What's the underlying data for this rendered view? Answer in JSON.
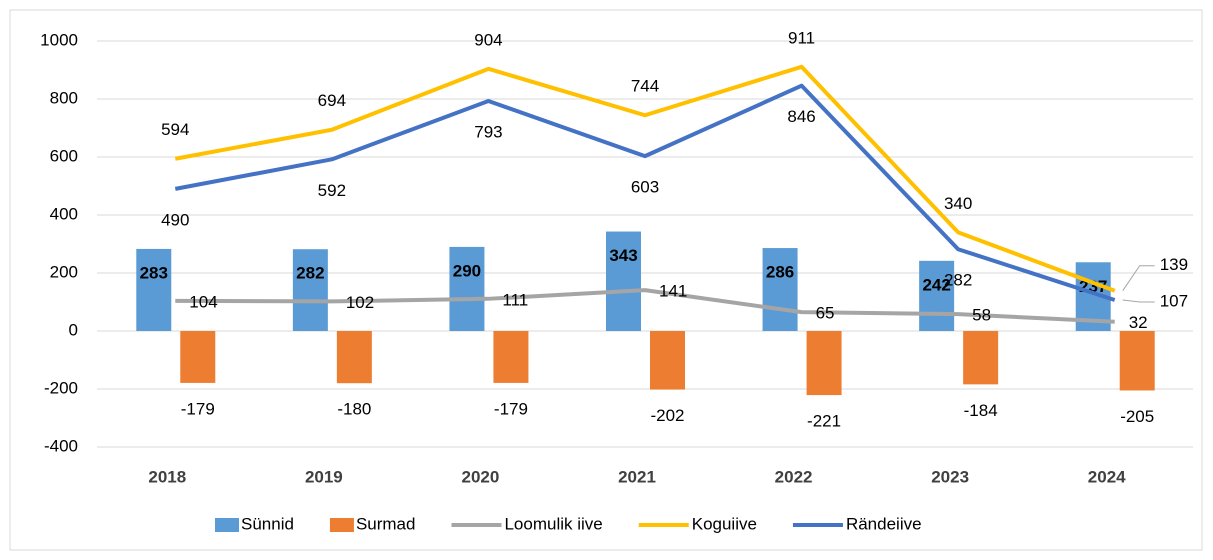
{
  "chart_data": {
    "type": "bar",
    "categories": [
      "2018",
      "2019",
      "2020",
      "2021",
      "2022",
      "2023",
      "2024"
    ],
    "series": [
      {
        "name": "Sünnid",
        "type": "bar",
        "color": "#5b9bd5",
        "values": [
          283,
          282,
          290,
          343,
          286,
          242,
          237
        ]
      },
      {
        "name": "Surmad",
        "type": "bar",
        "color": "#ed7d31",
        "values": [
          -179,
          -180,
          -179,
          -202,
          -221,
          -184,
          -205
        ]
      },
      {
        "name": "Loomulik iive",
        "type": "line",
        "color": "#a5a5a5",
        "values": [
          104,
          102,
          111,
          141,
          65,
          58,
          32
        ]
      },
      {
        "name": "Koguiive",
        "type": "line",
        "color": "#ffc000",
        "values": [
          594,
          694,
          904,
          744,
          911,
          340,
          139
        ]
      },
      {
        "name": "Rändeiive",
        "type": "line",
        "color": "#4472c4",
        "values": [
          490,
          592,
          793,
          603,
          846,
          282,
          107
        ]
      }
    ],
    "ylim": [
      -400,
      1000
    ],
    "yticks": [
      -400,
      -200,
      0,
      200,
      400,
      600,
      800,
      1000
    ],
    "grid": true,
    "legend": "bottom"
  }
}
